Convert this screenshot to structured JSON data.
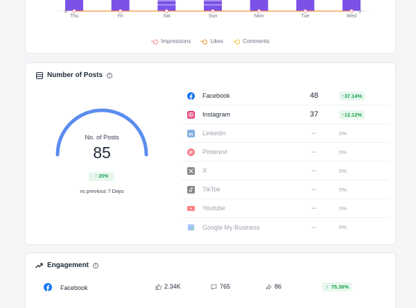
{
  "colors": {
    "bar": "#7b52e8",
    "impressions": "#f08a8a",
    "likes": "#f5913a",
    "comments": "#f5c13a",
    "gauge": "#5b8def",
    "up": "#16a34a",
    "facebook": "#1877f2",
    "instagram": "#e1306c"
  },
  "chart_data": {
    "type": "bar",
    "categories": [
      "Thu",
      "Fri",
      "Sat",
      "Sun",
      "Mon",
      "Tue",
      "Wed"
    ],
    "y_left_tick": "0",
    "y_right_tick": "0",
    "legend": [
      "Impressions",
      "Likes",
      "Comments"
    ],
    "legend_position": "bottom",
    "grid": false,
    "series": [
      {
        "name": "Impressions",
        "values": [
          0,
          0,
          0,
          0,
          0,
          0,
          0
        ]
      },
      {
        "name": "Likes",
        "values": [
          0,
          0,
          0,
          0,
          0,
          0,
          0
        ]
      },
      {
        "name": "Comments",
        "values": [
          0,
          0,
          0,
          0,
          0,
          0,
          0
        ]
      }
    ]
  },
  "posts": {
    "title": "Number of Posts",
    "info_icon": "info-icon",
    "header_icon": "database-icon",
    "gauge": {
      "label": "No. of Posts",
      "value": "85",
      "change": "25%",
      "caption": "vs previous 7 Days",
      "fill": 1.0
    },
    "platforms": [
      {
        "name": "Facebook",
        "count": "48",
        "change": "37.14%",
        "trend": "up",
        "icon": "facebook-icon",
        "active": true
      },
      {
        "name": "Instagram",
        "count": "37",
        "change": "12.12%",
        "trend": "up",
        "icon": "instagram-icon",
        "active": true
      },
      {
        "name": "Linkedin",
        "count": "–",
        "change": "0%",
        "trend": "none",
        "icon": "linkedin-icon",
        "active": false
      },
      {
        "name": "Pinterest",
        "count": "–",
        "change": "0%",
        "trend": "none",
        "icon": "pinterest-icon",
        "active": false
      },
      {
        "name": "X",
        "count": "–",
        "change": "0%",
        "trend": "none",
        "icon": "x-icon",
        "active": false
      },
      {
        "name": "TikTok",
        "count": "–",
        "change": "0%",
        "trend": "none",
        "icon": "tiktok-icon",
        "active": false
      },
      {
        "name": "Youtube",
        "count": "–",
        "change": "0%",
        "trend": "none",
        "icon": "youtube-icon",
        "active": false
      },
      {
        "name": "Google My Business",
        "count": "–",
        "change": "0%",
        "trend": "none",
        "icon": "google-business-icon",
        "active": false
      }
    ]
  },
  "engagement": {
    "title": "Engagement",
    "header_icon": "trending-up-icon",
    "row": {
      "platform": "Facebook",
      "likes": "2.34K",
      "comments": "765",
      "shares": "86",
      "change": "75.36%"
    }
  }
}
